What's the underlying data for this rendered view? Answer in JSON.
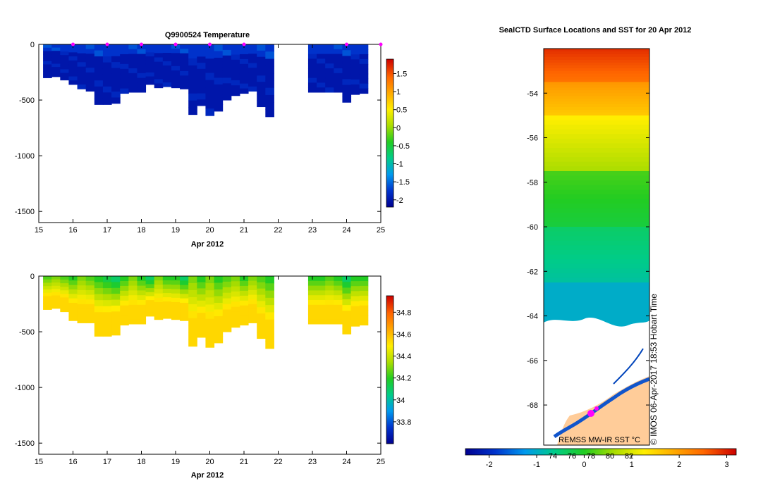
{
  "chart_data": [
    {
      "type": "heatmap",
      "id": "temperature",
      "title": "Q9900524  Temperature",
      "xlabel": "Apr 2012",
      "ylabel": "",
      "xlim": [
        15,
        25
      ],
      "ylim": [
        -1600,
        0
      ],
      "xticks": [
        "15",
        "16",
        "17",
        "18",
        "19",
        "20",
        "21",
        "22",
        "23",
        "24",
        "25"
      ],
      "yticks": [
        "0",
        "-500",
        "-1000",
        "-1500"
      ],
      "colorbar": {
        "range": [
          -2.2,
          1.9
        ],
        "ticks": [
          "1.5",
          "1",
          "0.5",
          "0",
          "-0.5",
          "-1",
          "-1.5",
          "-2"
        ],
        "colors": [
          "#00008f",
          "#0033cc",
          "#0099ee",
          "#00cc88",
          "#22cc22",
          "#aadd00",
          "#ffee00",
          "#ffaa00",
          "#ff6600",
          "#cc0000"
        ]
      },
      "surface_markers_day": [
        16,
        17,
        18,
        19,
        20,
        21,
        24,
        25
      ],
      "profiles": {
        "x": [
          15.25,
          15.5,
          15.75,
          16.0,
          16.25,
          16.5,
          16.75,
          17.0,
          17.25,
          17.5,
          17.75,
          18.0,
          18.25,
          18.5,
          18.75,
          19.0,
          19.25,
          19.5,
          19.75,
          20.0,
          20.25,
          20.5,
          20.75,
          21.0,
          21.25,
          21.5,
          21.75,
          23.0,
          23.25,
          23.5,
          23.75,
          24.0,
          24.25,
          24.5
        ],
        "depth": [
          300,
          290,
          320,
          360,
          400,
          420,
          540,
          540,
          530,
          440,
          430,
          430,
          360,
          390,
          380,
          390,
          400,
          630,
          550,
          640,
          600,
          500,
          460,
          440,
          420,
          560,
          650,
          430,
          430,
          430,
          430,
          520,
          450,
          440
        ],
        "values": [
          -2.0,
          -2.0,
          -2.0,
          -2.0,
          -2.0,
          -2.0,
          -2.0,
          -2.0,
          -2.0,
          -2.0,
          -2.0,
          -2.0,
          -2.0,
          -2.0,
          -2.0,
          -2.0,
          -2.0,
          -2.0,
          -2.0,
          -2.0,
          -2.0,
          -2.0,
          -2.0,
          -2.0,
          -2.0,
          -2.0,
          -2.0,
          -2.0,
          -2.0,
          -2.0,
          -2.0,
          -2.0,
          -2.0,
          -2.0
        ]
      }
    },
    {
      "type": "heatmap",
      "id": "salinity",
      "title": "",
      "xlabel": "Apr 2012",
      "ylabel": "",
      "xlim": [
        15,
        25
      ],
      "ylim": [
        -1600,
        0
      ],
      "xticks": [
        "15",
        "16",
        "17",
        "18",
        "19",
        "20",
        "21",
        "22",
        "23",
        "24",
        "25"
      ],
      "yticks": [
        "0",
        "-500",
        "-1000",
        "-1500"
      ],
      "colorbar": {
        "range": [
          33.6,
          34.95
        ],
        "ticks": [
          "34.8",
          "34.6",
          "34.4",
          "34.2",
          "34",
          "33.8"
        ],
        "colors": [
          "#00008f",
          "#0033cc",
          "#0099ee",
          "#00cc88",
          "#22cc22",
          "#aadd00",
          "#ffee00",
          "#ffaa00",
          "#ff6600",
          "#cc0000"
        ]
      },
      "profiles": {
        "x": [
          15.25,
          15.5,
          15.75,
          16.0,
          16.25,
          16.5,
          16.75,
          17.0,
          17.25,
          17.5,
          17.75,
          18.0,
          18.25,
          18.5,
          18.75,
          19.0,
          19.25,
          19.5,
          19.75,
          20.0,
          20.25,
          20.5,
          20.75,
          21.0,
          21.25,
          21.5,
          21.75,
          23.0,
          23.25,
          23.5,
          23.75,
          24.0,
          24.25,
          24.5
        ],
        "depth": [
          300,
          290,
          320,
          400,
          420,
          420,
          540,
          540,
          530,
          440,
          430,
          430,
          360,
          390,
          380,
          390,
          400,
          630,
          550,
          640,
          600,
          500,
          460,
          440,
          420,
          560,
          650,
          430,
          430,
          430,
          430,
          520,
          450,
          440
        ],
        "surface": [
          34.25,
          34.3,
          34.25,
          34.2,
          34.3,
          34.25,
          34.2,
          34.15,
          34.1,
          34.2,
          34.3,
          34.2,
          34.1,
          34.3,
          34.2,
          34.2,
          34.1,
          34.3,
          34.2,
          34.3,
          34.2,
          34.25,
          34.3,
          34.2,
          34.3,
          34.25,
          34.2,
          34.2,
          34.2,
          34.25,
          34.2,
          34.1,
          34.2,
          34.2
        ],
        "deep": 34.55
      }
    },
    {
      "type": "heatmap",
      "id": "sst-map",
      "title": "SealCTD Surface Locations and SST for 20 Apr 2012",
      "xlabel": "",
      "ylabel": "",
      "ylim": [
        -69.8,
        -52.0
      ],
      "yticks": [
        "-54",
        "-56",
        "-58",
        "-60",
        "-62",
        "-64",
        "-66",
        "-68"
      ],
      "bands": [
        {
          "lat_top": -52.0,
          "lat_bottom": -53.5,
          "sst": 2.9
        },
        {
          "lat_top": -53.5,
          "lat_bottom": -55.0,
          "sst": 2.1
        },
        {
          "lat_top": -55.0,
          "lat_bottom": -57.5,
          "sst": 1.3
        },
        {
          "lat_top": -57.5,
          "lat_bottom": -60.0,
          "sst": 0.2
        },
        {
          "lat_top": -60.0,
          "lat_bottom": -62.5,
          "sst": -0.4
        },
        {
          "lat_top": -62.5,
          "lat_bottom": -64.5,
          "sst": -1.0
        }
      ],
      "colorbar": {
        "range": [
          -2.5,
          3.2
        ],
        "ticks": [
          "-2",
          "-1",
          "0",
          "1",
          "2",
          "3"
        ],
        "inner_ticks": [
          "74",
          "76",
          "78",
          "80",
          "82"
        ],
        "colors": [
          "#00008f",
          "#0033cc",
          "#0099ee",
          "#00cc88",
          "#22cc22",
          "#aadd00",
          "#ffee00",
          "#ffaa00",
          "#ff6600",
          "#cc0000"
        ]
      },
      "source_label": "REMSS MW-IR SST °C",
      "credit": "© IMOS 06-Apr-2017 18:53 Hobart Time"
    }
  ]
}
